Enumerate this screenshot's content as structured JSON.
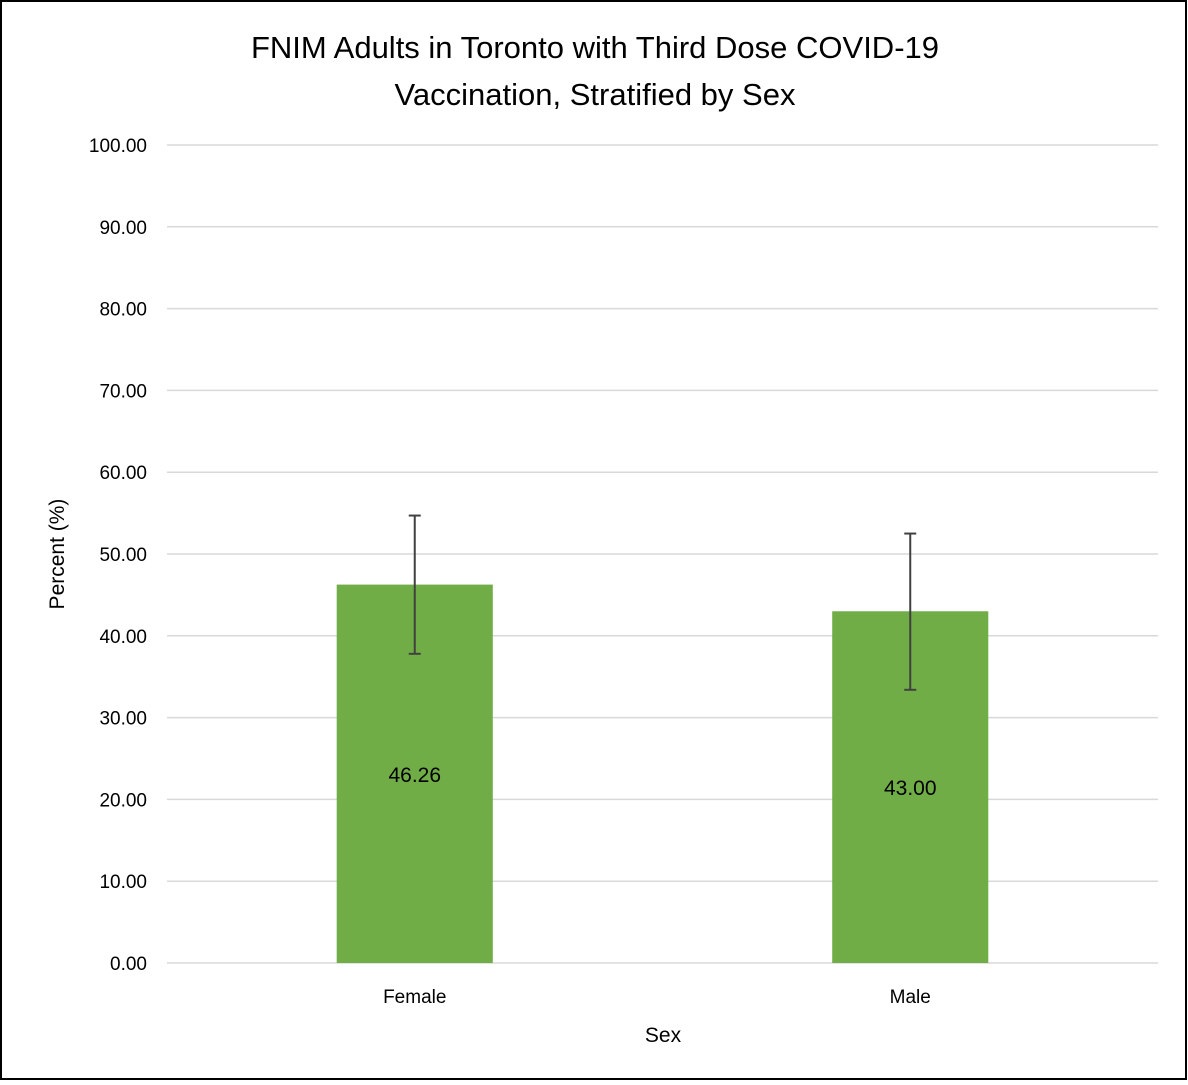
{
  "chart_data": {
    "type": "bar",
    "title_lines": [
      "FNIM Adults in Toronto with Third Dose COVID-19",
      "Vaccination, Stratified by Sex"
    ],
    "xlabel": "Sex",
    "ylabel": "Percent (%)",
    "categories": [
      "Female",
      "Male"
    ],
    "values": [
      46.26,
      43.0
    ],
    "data_labels": [
      "46.26",
      "43.00"
    ],
    "error_bars": [
      {
        "lower": 37.8,
        "upper": 54.7
      },
      {
        "lower": 33.4,
        "upper": 52.5
      }
    ],
    "ylim": [
      0,
      100
    ],
    "yticks": [
      0,
      10,
      20,
      30,
      40,
      50,
      60,
      70,
      80,
      90,
      100
    ],
    "ytick_labels": [
      "0.00",
      "10.00",
      "20.00",
      "30.00",
      "40.00",
      "50.00",
      "60.00",
      "70.00",
      "80.00",
      "90.00",
      "100.00"
    ],
    "grid": true,
    "legend": "none",
    "colors": {
      "bar": "#70ad47",
      "gridline": "#d9d9d9",
      "error_bar": "#404040",
      "border": "#000000"
    }
  }
}
